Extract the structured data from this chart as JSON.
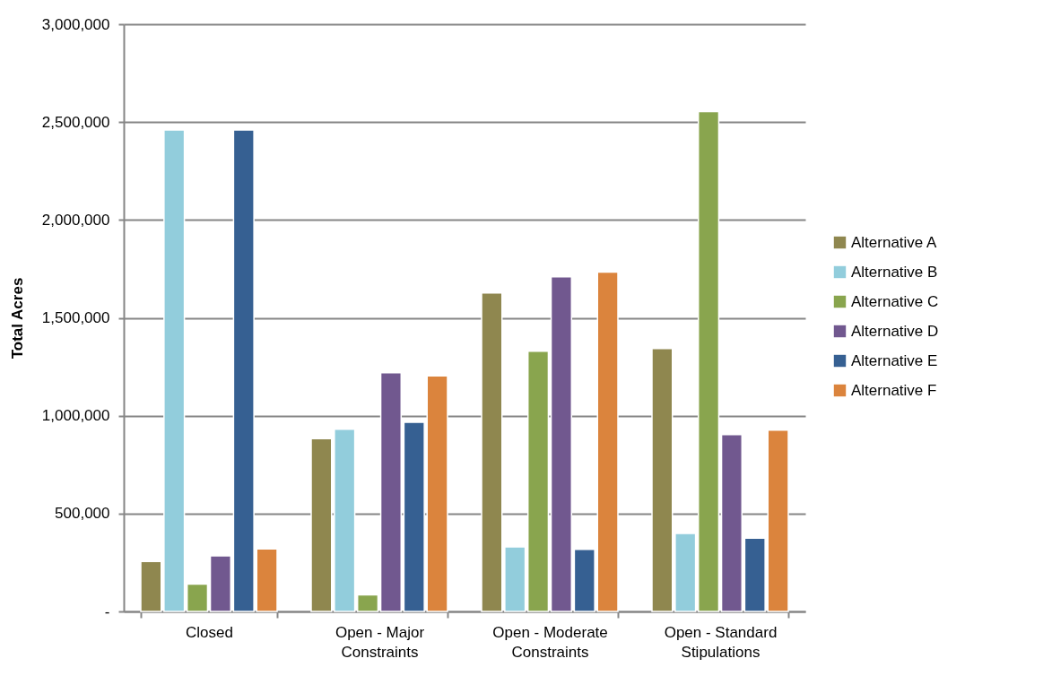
{
  "chart_data": {
    "type": "bar",
    "ylabel": "Total Acres",
    "categories": [
      "Closed",
      "Open - Major Constraints",
      "Open - Moderate Constraints",
      "Open - Standard Stipulations"
    ],
    "series": [
      {
        "name": "Alternative A",
        "color": "#8f874f",
        "values": [
          255000,
          883000,
          1627000,
          1343000
        ]
      },
      {
        "name": "Alternative B",
        "color": "#92cddc",
        "values": [
          2460000,
          931000,
          330000,
          398000
        ]
      },
      {
        "name": "Alternative C",
        "color": "#89a54e",
        "values": [
          140000,
          85000,
          1329000,
          2553000
        ]
      },
      {
        "name": "Alternative D",
        "color": "#71588f",
        "values": [
          284000,
          1220000,
          1710000,
          903000
        ]
      },
      {
        "name": "Alternative E",
        "color": "#366092",
        "values": [
          2460000,
          966000,
          317000,
          374000
        ]
      },
      {
        "name": "Alternative F",
        "color": "#db843d",
        "values": [
          319000,
          1203000,
          1734000,
          926000
        ]
      }
    ],
    "ylim": [
      0,
      3000000
    ],
    "yticks": [
      {
        "value": 0,
        "label": "-"
      },
      {
        "value": 500000,
        "label": "500,000"
      },
      {
        "value": 1000000,
        "label": "1,000,000"
      },
      {
        "value": 1500000,
        "label": "1,500,000"
      },
      {
        "value": 2000000,
        "label": "2,000,000"
      },
      {
        "value": 2500000,
        "label": "2,500,000"
      },
      {
        "value": 3000000,
        "label": "3,000,000"
      }
    ],
    "grid": "y",
    "legend": "right"
  }
}
